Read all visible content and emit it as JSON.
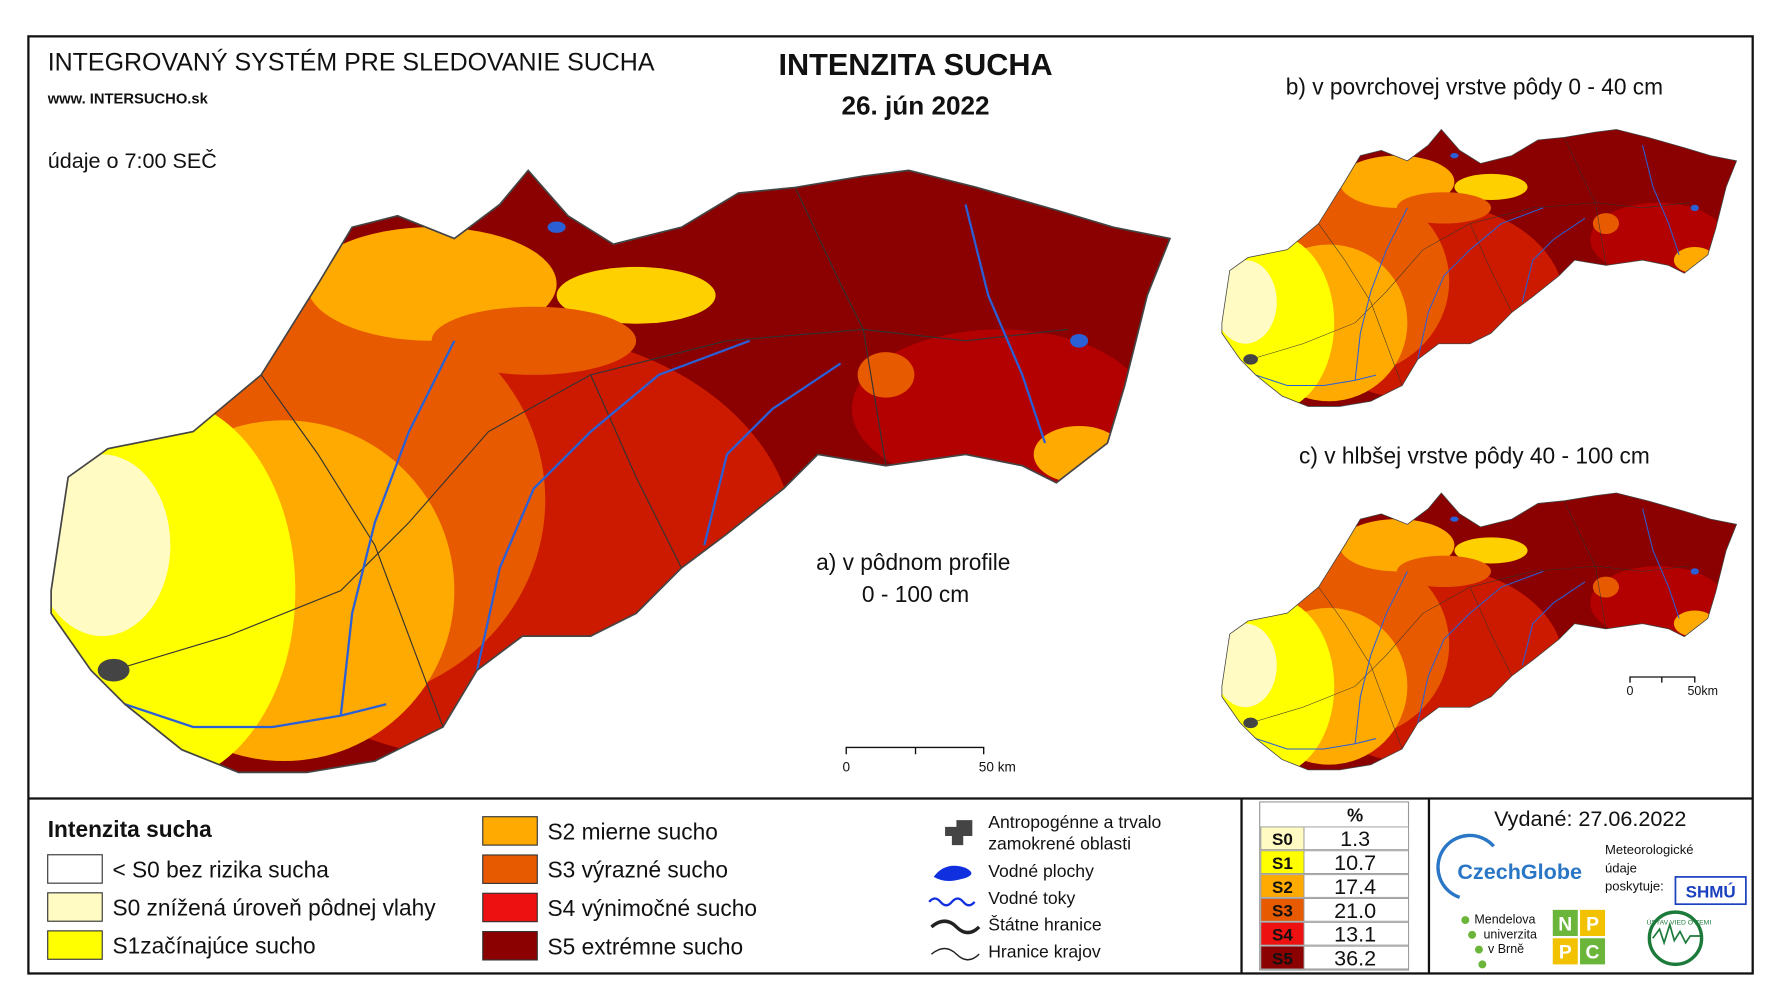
{
  "header": {
    "system": "INTEGROVANÝ SYSTÉM PRE SLEDOVANIE SUCHA",
    "web": "www. INTERSUCHO.sk",
    "time_note": "údaje o 7:00 SEČ"
  },
  "title": "INTENZITA SUCHA",
  "date": "26. jún 2022",
  "maps": {
    "a": {
      "lines": [
        "a) v pôdnom profile",
        "0 - 100 cm"
      ],
      "scale": [
        "0",
        "50 km"
      ]
    },
    "b": {
      "label": "b) v povrchovej vrstve pôdy 0 - 40 cm"
    },
    "c": {
      "label": "c) v hlbšej vrstve pôdy 40 - 100 cm",
      "scale": [
        "0",
        "50km"
      ]
    }
  },
  "legend": {
    "title": "Intenzita sucha",
    "items": [
      {
        "label": "< S0 bez rizika sucha",
        "color": "#ffffff"
      },
      {
        "label": "S0 znížená úroveň pôdnej vlahy",
        "color": "#fffbc2"
      },
      {
        "label": "S1začínajúce sucho",
        "color": "#ffff00"
      },
      {
        "label": "S2 mierne sucho",
        "color": "#ffaa00"
      },
      {
        "label": "S3 výrazné sucho",
        "color": "#e85a00"
      },
      {
        "label": "S4 výnimočné sucho",
        "color": "#ee1111"
      },
      {
        "label": "S5 extrémne sucho",
        "color": "#8b0000"
      }
    ]
  },
  "features": [
    [
      "Antropogénne a trvalo",
      "zamokrené oblasti"
    ],
    [
      "Vodné plochy"
    ],
    [
      "Vodné toky"
    ],
    [
      "Štátne hranice"
    ],
    [
      "Hranice krajov"
    ]
  ],
  "stats": {
    "header": "%",
    "rows": [
      {
        "class": "S0",
        "percent": 1.3,
        "color": "#fffbc2"
      },
      {
        "class": "S1",
        "percent": 10.7,
        "color": "#ffff00"
      },
      {
        "class": "S2",
        "percent": 17.4,
        "color": "#ffaa00"
      },
      {
        "class": "S3",
        "percent": {
          "value": 21.0,
          "label": "21.0"
        },
        "color": "#e85a00"
      },
      {
        "class": "S4",
        "percent": 13.1,
        "color": "#ee1111"
      },
      {
        "class": "S5",
        "percent": 36.2,
        "color": "#8b0000"
      }
    ]
  },
  "issued": "Vydané: 27.06.2022",
  "logos": {
    "czechglobe": "CzechGlobe",
    "meteo": [
      "Meteorologické",
      "údaje",
      "poskytuje:"
    ],
    "shmu": "SHMÚ",
    "mendel": [
      "Mendelova",
      "univerzita",
      "v Brně"
    ],
    "nppc": [
      "N",
      "P",
      "P",
      "C"
    ],
    "uvz": "ÚSTAV VIED O ZEMI"
  }
}
